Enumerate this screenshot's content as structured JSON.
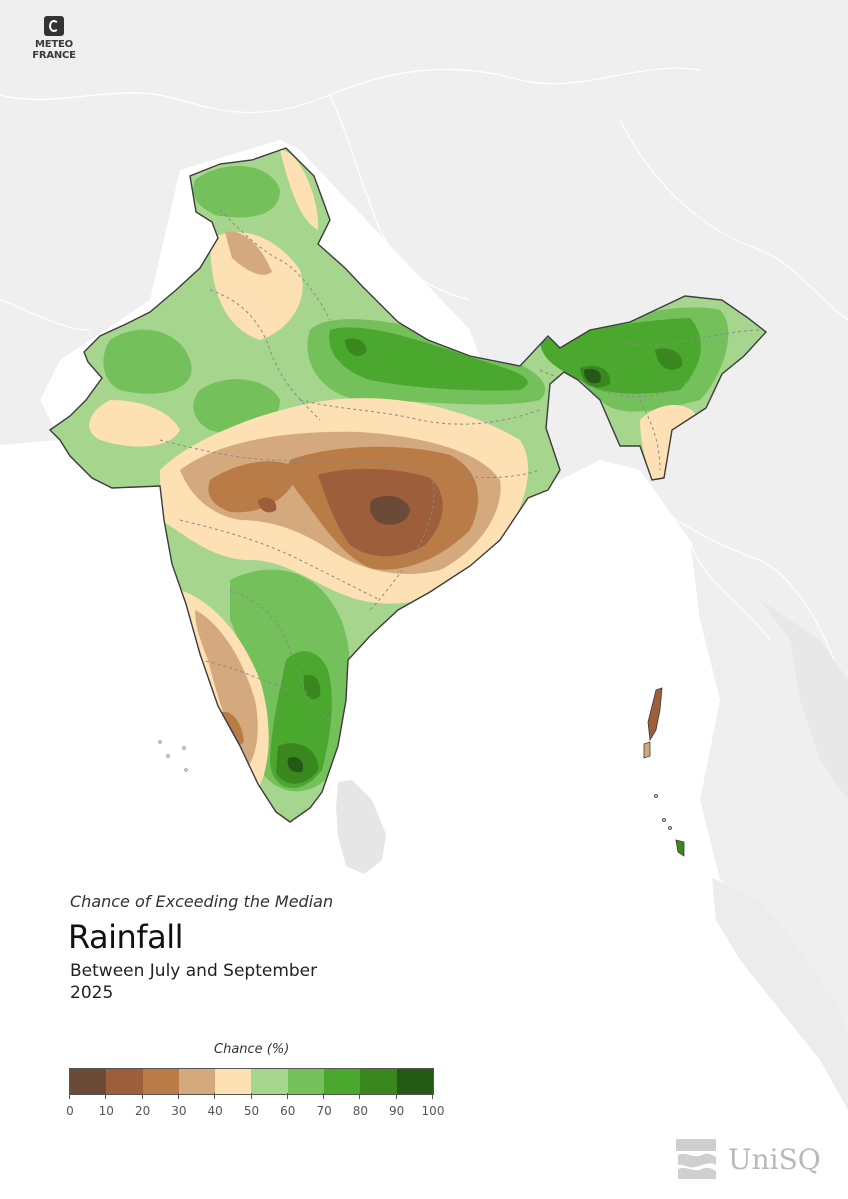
{
  "header": {
    "logo_lines": [
      "METEO",
      "FRANCE"
    ]
  },
  "caption": {
    "subtitle": "Chance of Exceeding the Median",
    "title": "Rainfall",
    "period_line1": "Between July and September",
    "period_line2": "2025"
  },
  "legend": {
    "title": "Chance (%)",
    "ticks": [
      "0",
      "10",
      "20",
      "30",
      "40",
      "50",
      "60",
      "70",
      "80",
      "90",
      "100"
    ],
    "colors": [
      "#6b4a37",
      "#9c5e3b",
      "#b97c46",
      "#d4a97d",
      "#fde0b4",
      "#a6d58e",
      "#74c05a",
      "#4aa82e",
      "#3a861f",
      "#255a16"
    ]
  },
  "footer": {
    "logo_text": "UniSQ"
  }
}
